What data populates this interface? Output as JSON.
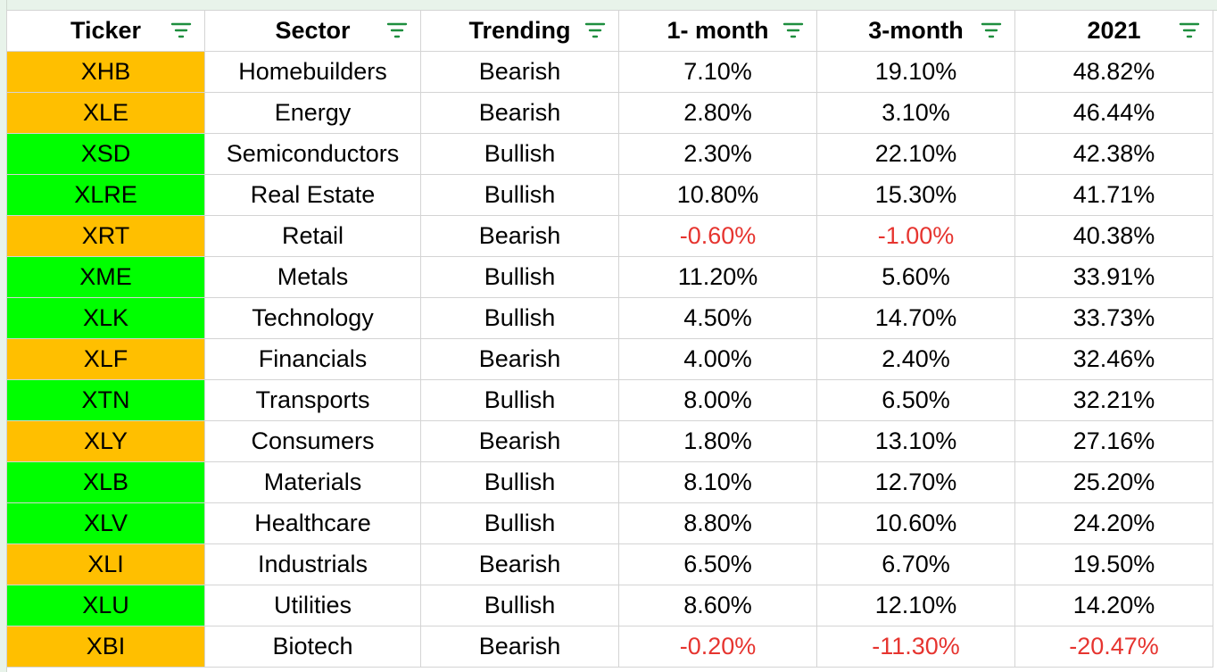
{
  "colors": {
    "bullish_fill": "#00ff00",
    "bearish_fill": "#ffbf00",
    "negative_text": "#e6342f",
    "filter_icon": "#1e8e3e"
  },
  "headers": [
    "Ticker",
    "Sector",
    "Trending",
    "1- month",
    "3-month",
    "2021"
  ],
  "rows": [
    {
      "ticker": "XHB",
      "sector": "Homebuilders",
      "trending": "Bearish",
      "m1": "7.10%",
      "m3": "19.10%",
      "y2021": "48.82%"
    },
    {
      "ticker": "XLE",
      "sector": "Energy",
      "trending": "Bearish",
      "m1": "2.80%",
      "m3": "3.10%",
      "y2021": "46.44%"
    },
    {
      "ticker": "XSD",
      "sector": "Semiconductors",
      "trending": "Bullish",
      "m1": "2.30%",
      "m3": "22.10%",
      "y2021": "42.38%"
    },
    {
      "ticker": "XLRE",
      "sector": "Real Estate",
      "trending": "Bullish",
      "m1": "10.80%",
      "m3": "15.30%",
      "y2021": "41.71%"
    },
    {
      "ticker": "XRT",
      "sector": "Retail",
      "trending": "Bearish",
      "m1": "-0.60%",
      "m3": "-1.00%",
      "y2021": "40.38%"
    },
    {
      "ticker": "XME",
      "sector": "Metals",
      "trending": "Bullish",
      "m1": "11.20%",
      "m3": "5.60%",
      "y2021": "33.91%"
    },
    {
      "ticker": "XLK",
      "sector": "Technology",
      "trending": "Bullish",
      "m1": "4.50%",
      "m3": "14.70%",
      "y2021": "33.73%"
    },
    {
      "ticker": "XLF",
      "sector": "Financials",
      "trending": "Bearish",
      "m1": "4.00%",
      "m3": "2.40%",
      "y2021": "32.46%"
    },
    {
      "ticker": "XTN",
      "sector": "Transports",
      "trending": "Bullish",
      "m1": "8.00%",
      "m3": "6.50%",
      "y2021": "32.21%"
    },
    {
      "ticker": "XLY",
      "sector": "Consumers",
      "trending": "Bearish",
      "m1": "1.80%",
      "m3": "13.10%",
      "y2021": "27.16%"
    },
    {
      "ticker": "XLB",
      "sector": "Materials",
      "trending": "Bullish",
      "m1": "8.10%",
      "m3": "12.70%",
      "y2021": "25.20%"
    },
    {
      "ticker": "XLV",
      "sector": "Healthcare",
      "trending": "Bullish",
      "m1": "8.80%",
      "m3": "10.60%",
      "y2021": "24.20%"
    },
    {
      "ticker": "XLI",
      "sector": "Industrials",
      "trending": "Bearish",
      "m1": "6.50%",
      "m3": "6.70%",
      "y2021": "19.50%"
    },
    {
      "ticker": "XLU",
      "sector": "Utilities",
      "trending": "Bullish",
      "m1": "8.60%",
      "m3": "12.10%",
      "y2021": "14.20%"
    },
    {
      "ticker": "XBI",
      "sector": "Biotech",
      "trending": "Bearish",
      "m1": "-0.20%",
      "m3": "-11.30%",
      "y2021": "-20.47%"
    }
  ]
}
